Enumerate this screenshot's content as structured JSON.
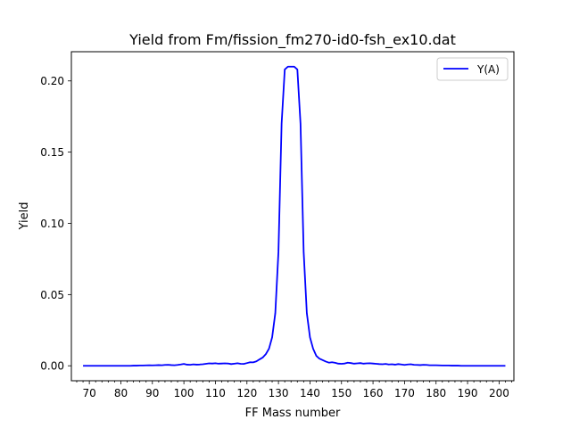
{
  "chart_data": {
    "type": "line",
    "title": "Yield from  Fm/fission_fm270-id0-fsh_ex10.dat",
    "xlabel": "FF Mass number",
    "ylabel": "Yield",
    "xlim": [
      64.3,
      204.7
    ],
    "ylim": [
      -0.0105,
      0.2205
    ],
    "xticks": [
      70,
      80,
      90,
      100,
      110,
      120,
      130,
      140,
      150,
      160,
      170,
      180,
      190,
      200
    ],
    "xminor_step": 2,
    "yticks": [
      0.0,
      0.05,
      0.1,
      0.15,
      0.2
    ],
    "ytick_labels": [
      "0.00",
      "0.05",
      "0.10",
      "0.15",
      "0.20"
    ],
    "grid": false,
    "legend": {
      "position": "top-right",
      "entries": [
        "Y(A)"
      ]
    },
    "series": [
      {
        "name": "Y(A)",
        "color": "#0000ff",
        "x": [
          68,
          69,
          70,
          71,
          72,
          73,
          74,
          75,
          76,
          77,
          78,
          79,
          80,
          81,
          82,
          83,
          84,
          85,
          86,
          87,
          88,
          89,
          90,
          91,
          92,
          93,
          94,
          95,
          96,
          97,
          98,
          99,
          100,
          101,
          102,
          103,
          104,
          105,
          106,
          107,
          108,
          109,
          110,
          111,
          112,
          113,
          114,
          115,
          116,
          117,
          118,
          119,
          120,
          121,
          122,
          123,
          124,
          125,
          126,
          127,
          128,
          129,
          130,
          131,
          132,
          133,
          134,
          135,
          136,
          137,
          138,
          139,
          140,
          141,
          142,
          143,
          144,
          145,
          146,
          147,
          148,
          149,
          150,
          151,
          152,
          153,
          154,
          155,
          156,
          157,
          158,
          159,
          160,
          161,
          162,
          163,
          164,
          165,
          166,
          167,
          168,
          169,
          170,
          171,
          172,
          173,
          174,
          175,
          176,
          177,
          178,
          179,
          180,
          181,
          182,
          183,
          184,
          185,
          186,
          187,
          188,
          189,
          190,
          191,
          192,
          193,
          194,
          195,
          196,
          197,
          198,
          199,
          200,
          201,
          202
        ],
        "values": [
          0.0,
          0.0,
          0.0,
          0.0,
          0.0,
          0.0,
          0.0,
          0.0,
          0.0,
          0.0,
          0.0,
          0.0,
          0.0,
          0.0,
          0.0,
          0.0,
          0.0001,
          0.0001,
          0.0002,
          0.0002,
          0.0003,
          0.0004,
          0.0003,
          0.0004,
          0.0005,
          0.0004,
          0.0006,
          0.0007,
          0.0005,
          0.0004,
          0.0006,
          0.0009,
          0.0013,
          0.0008,
          0.0007,
          0.001,
          0.0008,
          0.0009,
          0.0011,
          0.0014,
          0.0017,
          0.0016,
          0.0018,
          0.0015,
          0.0016,
          0.0017,
          0.0016,
          0.0012,
          0.0015,
          0.0018,
          0.0014,
          0.0013,
          0.0019,
          0.0025,
          0.0024,
          0.0031,
          0.0045,
          0.0058,
          0.0082,
          0.012,
          0.02,
          0.037,
          0.08,
          0.17,
          0.208,
          0.21,
          0.21,
          0.21,
          0.208,
          0.17,
          0.08,
          0.037,
          0.02,
          0.012,
          0.007,
          0.005,
          0.004,
          0.003,
          0.0022,
          0.0025,
          0.0021,
          0.0015,
          0.0014,
          0.0016,
          0.0022,
          0.0019,
          0.0015,
          0.0017,
          0.0019,
          0.0015,
          0.0017,
          0.0018,
          0.0016,
          0.0014,
          0.0012,
          0.0011,
          0.0013,
          0.0009,
          0.0011,
          0.0008,
          0.0012,
          0.0009,
          0.0006,
          0.0009,
          0.0011,
          0.0007,
          0.0006,
          0.0005,
          0.0007,
          0.0006,
          0.0004,
          0.0004,
          0.0004,
          0.0003,
          0.0002,
          0.0002,
          0.0002,
          0.0001,
          0.0001,
          0.0001,
          0.0,
          0.0,
          0.0,
          0.0,
          0.0,
          0.0,
          0.0,
          0.0,
          0.0,
          0.0,
          0.0,
          0.0,
          0.0,
          0.0,
          0.0
        ]
      }
    ]
  }
}
